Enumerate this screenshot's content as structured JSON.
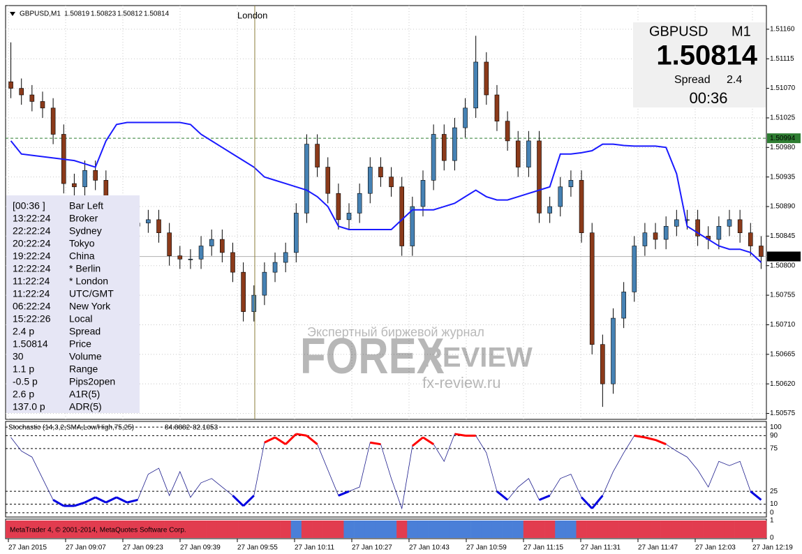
{
  "header": {
    "symbol": "GBPUSD,M1",
    "ohlc": [
      1.50819,
      1.50823,
      1.50812,
      1.50814
    ]
  },
  "session_marker": "London",
  "price_box": {
    "symbol": "GBPUSD",
    "timeframe": "M1",
    "price": 1.50814,
    "spread_label": "Spread",
    "spread": 2.4,
    "timer": "00:36"
  },
  "info_panel": [
    {
      "value": "[00:36 ]",
      "label": "Bar Left",
      "color": "#4a7fc0",
      "label_color": "#2a9a2a"
    },
    {
      "value": "13:22:24",
      "label": "Broker",
      "color": "#4a7fc0",
      "label_color": "#2a9a2a"
    },
    {
      "value": "22:22:24",
      "label": "Sydney",
      "color": "#4a7fc0",
      "label_color": "#2a9a2a"
    },
    {
      "value": "20:22:24",
      "label": "Tokyo",
      "color": "#4a7fc0",
      "label_color": "#2a9a2a"
    },
    {
      "value": "19:22:24",
      "label": "China",
      "color": "#4a7fc0",
      "label_color": "#2a9a2a"
    },
    {
      "value": "12:22:24",
      "label": "* Berlin",
      "color": "#ff4a1a",
      "label_color": "#ff4a1a"
    },
    {
      "value": "11:22:24",
      "label": "* London",
      "color": "#ff4a1a",
      "label_color": "#ff4a1a"
    },
    {
      "value": "11:22:24",
      "label": "UTC/GMT",
      "color": "#4a7fc0",
      "label_color": "#2a9a2a"
    },
    {
      "value": "06:22:24",
      "label": "New York",
      "color": "#4a7fc0",
      "label_color": "#2a9a2a"
    },
    {
      "value": "15:22:26",
      "label": "Local",
      "color": "#4a7fc0",
      "label_color": "#2a9a2a"
    },
    {
      "value": "2.4 p",
      "label": "Spread",
      "color": "#4a7fc0",
      "label_color": "#2a9a2a"
    },
    {
      "value": "1.50814",
      "label": "Price",
      "color": "#e8201a",
      "label_color": "#2a9a2a"
    },
    {
      "value": "30",
      "label": "Volume",
      "color": "#e8201a",
      "label_color": "#2a9a2a"
    },
    {
      "value": "1.1 p",
      "label": "Range",
      "color": "#e8201a",
      "label_color": "#2a9a2a"
    },
    {
      "value": "-0.5 p",
      "label": "Pips2open",
      "color": "#e8201a",
      "label_color": "#2a9a2a"
    },
    {
      "value": "2.6 p",
      "label": "A1R(5)",
      "color": "#e8201a",
      "label_color": "#2a9a2a"
    },
    {
      "value": "137.0 p",
      "label": "ADR(5)",
      "color": "#e8201a",
      "label_color": "#2a9a2a"
    }
  ],
  "watermark": {
    "top": "Экспертный биржевой журнал",
    "left": "FOREX",
    "right": "REVIEW",
    "site": "fx-review.ru"
  },
  "copyright": "MetaTrader 4, © 2001-2014, MetaQuotes Software Corp.",
  "time_axis": [
    "27 Jan 2015",
    "27 Jan 09:07",
    "27 Jan 09:23",
    "27 Jan 09:39",
    "27 Jan 09:55",
    "27 Jan 10:11",
    "27 Jan 10:27",
    "27 Jan 10:43",
    "27 Jan 10:59",
    "27 Jan 11:15",
    "27 Jan 11:31",
    "27 Jan 11:47",
    "27 Jan 12:03",
    "27 Jan 12:19"
  ],
  "chart_data": [
    {
      "type": "candlestick",
      "bull_color": "#4682b4",
      "bear_color": "#8b3a1a",
      "open": [
        1.5108,
        1.5107,
        1.5106,
        1.5105,
        1.5104,
        1.51,
        1.50925,
        1.5092,
        1.50945,
        1.5093,
        1.5087,
        1.50855,
        1.5086,
        1.50865,
        1.5087,
        1.5085,
        1.50815,
        1.5081,
        1.5081,
        1.5083,
        1.5084,
        1.5082,
        1.5079,
        1.5073,
        1.50755,
        1.5079,
        1.50805,
        1.5082,
        1.5088,
        1.50985,
        1.5095,
        1.5091,
        1.5087,
        1.5088,
        1.5091,
        1.5095,
        1.50935,
        1.5092,
        1.5083,
        1.5089,
        1.5093,
        1.51,
        1.5096,
        1.5101,
        1.5104,
        1.5111,
        1.5106,
        1.5102,
        1.5099,
        1.5095,
        1.5099,
        1.5088,
        1.5089,
        1.5092,
        1.5093,
        1.5085,
        1.5068,
        1.5062,
        1.5072,
        1.5076,
        1.5083,
        1.5085,
        1.5084,
        1.5086,
        1.5087,
        1.5087,
        1.50845,
        1.5084,
        1.5086,
        1.5087,
        1.5085,
        1.5083
      ],
      "high": [
        1.5114,
        1.51085,
        1.51075,
        1.51065,
        1.51055,
        1.51015,
        1.5094,
        1.5096,
        1.5096,
        1.50945,
        1.50885,
        1.50875,
        1.5088,
        1.50885,
        1.50885,
        1.50865,
        1.5083,
        1.50825,
        1.50845,
        1.50855,
        1.50855,
        1.50835,
        1.50805,
        1.5077,
        1.50805,
        1.5082,
        1.50835,
        1.50895,
        1.51,
        1.51,
        1.50965,
        1.50925,
        1.50895,
        1.50925,
        1.50965,
        1.50965,
        1.5095,
        1.50935,
        1.50905,
        1.50945,
        1.51015,
        1.51015,
        1.51025,
        1.51055,
        1.5115,
        1.51125,
        1.51075,
        1.51035,
        1.51005,
        1.51005,
        1.51005,
        1.50905,
        1.50935,
        1.50945,
        1.50945,
        1.50865,
        1.50695,
        1.50735,
        1.50775,
        1.50845,
        1.50865,
        1.50865,
        1.50875,
        1.50885,
        1.50885,
        1.50885,
        1.5086,
        1.50875,
        1.50885,
        1.50885,
        1.50865,
        1.50845
      ],
      "low": [
        1.51055,
        1.51045,
        1.51035,
        1.51025,
        1.50985,
        1.5091,
        1.50905,
        1.50905,
        1.50915,
        1.50855,
        1.5084,
        1.5084,
        1.50845,
        1.5085,
        1.50835,
        1.508,
        1.50795,
        1.50795,
        1.50795,
        1.50815,
        1.50805,
        1.50775,
        1.50715,
        1.50715,
        1.5074,
        1.50775,
        1.5079,
        1.50805,
        1.50865,
        1.50935,
        1.50895,
        1.50855,
        1.50855,
        1.50865,
        1.50895,
        1.5092,
        1.50905,
        1.50815,
        1.50815,
        1.50875,
        1.50915,
        1.50945,
        1.50945,
        1.50995,
        1.51025,
        1.51045,
        1.51005,
        1.50975,
        1.50935,
        1.50935,
        1.50865,
        1.50865,
        1.50875,
        1.50905,
        1.50835,
        1.50665,
        1.50585,
        1.50605,
        1.50705,
        1.50745,
        1.50815,
        1.50825,
        1.50825,
        1.50845,
        1.50855,
        1.5083,
        1.50825,
        1.50825,
        1.50845,
        1.50835,
        1.50815,
        1.50795
      ],
      "close": [
        1.5107,
        1.5106,
        1.5105,
        1.5104,
        1.51,
        1.50925,
        1.5092,
        1.50945,
        1.5093,
        1.5087,
        1.50855,
        1.5086,
        1.50865,
        1.5087,
        1.5085,
        1.50815,
        1.5081,
        1.5081,
        1.5083,
        1.5084,
        1.5082,
        1.5079,
        1.5073,
        1.50755,
        1.5079,
        1.50805,
        1.5082,
        1.5088,
        1.50985,
        1.5095,
        1.5091,
        1.5087,
        1.5088,
        1.5091,
        1.5095,
        1.50935,
        1.5092,
        1.5083,
        1.5089,
        1.5093,
        1.51,
        1.5096,
        1.5101,
        1.5104,
        1.5111,
        1.5106,
        1.5102,
        1.5099,
        1.5095,
        1.5099,
        1.5088,
        1.5089,
        1.5092,
        1.5093,
        1.5085,
        1.5068,
        1.5062,
        1.5072,
        1.5076,
        1.5083,
        1.5085,
        1.5084,
        1.5086,
        1.5087,
        1.5087,
        1.50845,
        1.5084,
        1.5086,
        1.5087,
        1.5085,
        1.5083,
        1.50814
      ],
      "overlay": {
        "color": "#1a1aff",
        "values": [
          1.5099,
          1.5097,
          1.50968,
          1.50966,
          1.50964,
          1.50962,
          1.5096,
          1.50955,
          1.5095,
          1.5099,
          1.51015,
          1.51018,
          1.51018,
          1.51018,
          1.51018,
          1.51018,
          1.51018,
          1.51015,
          1.51,
          1.5099,
          1.5098,
          1.5097,
          1.5096,
          1.5095,
          1.50935,
          1.5093,
          1.50925,
          1.5092,
          1.50915,
          1.50905,
          1.5089,
          1.5086,
          1.50855,
          1.50855,
          1.50855,
          1.50855,
          1.50855,
          1.5087,
          1.50885,
          1.50885,
          1.50885,
          1.5089,
          1.50895,
          1.50905,
          1.50915,
          1.50905,
          1.509,
          1.509,
          1.50905,
          1.5091,
          1.50915,
          1.5092,
          1.5097,
          1.5097,
          1.50972,
          1.50975,
          1.50985,
          1.50985,
          1.50983,
          1.50982,
          1.50982,
          1.50982,
          1.5098,
          1.5094,
          1.5086,
          1.5085,
          1.5084,
          1.5083,
          1.50825,
          1.50825,
          1.5082,
          1.50805
        ]
      },
      "hlines": [
        {
          "value": 1.50994,
          "color": "#2e7d32",
          "label_bg": "#2e7d32",
          "dashed": true
        },
        {
          "value": 1.50814,
          "color": "#b0b0b0",
          "label_bg": "#000000",
          "dashed": false
        }
      ],
      "ylim": [
        1.50566,
        1.51196
      ],
      "yticks": [
        {
          "value": 1.5116,
          "label": "1.51160"
        },
        1.51115,
        {
          "value": 1.5107,
          "label": "1.51070"
        },
        1.51025,
        {
          "value": 1.5098,
          "label": "1.50980"
        },
        1.50935,
        {
          "value": 1.5089,
          "label": "1.50890"
        },
        1.50845,
        {
          "value": 1.508,
          "label": "1.50800"
        },
        1.50755,
        {
          "value": 1.5071,
          "label": "1.50710"
        },
        1.50665,
        {
          "value": 1.5062,
          "label": "1.50620"
        },
        1.50575
      ],
      "grid": true
    },
    {
      "type": "stochastic",
      "title": "Stochastic (14,3,2,SMA,Low/High,75,25)",
      "last": [
        84.8882,
        82.1053
      ],
      "color": "#1c1c8c",
      "high_color": "#ff0000",
      "low_color": "#0000e0",
      "values": [
        88,
        72,
        65,
        40,
        15,
        8,
        8,
        12,
        18,
        12,
        18,
        12,
        15,
        45,
        52,
        20,
        48,
        18,
        35,
        40,
        30,
        20,
        8,
        20,
        82,
        88,
        80,
        92,
        90,
        80,
        50,
        20,
        25,
        30,
        82,
        80,
        40,
        5,
        78,
        88,
        80,
        60,
        92,
        90,
        90,
        70,
        25,
        15,
        30,
        40,
        15,
        20,
        40,
        45,
        18,
        5,
        20,
        48,
        70,
        90,
        88,
        85,
        80,
        72,
        65,
        50,
        30,
        60,
        55,
        60,
        25,
        15
      ],
      "ylim": [
        -5,
        105
      ],
      "yticks": [
        100,
        90,
        75,
        25,
        10,
        0
      ]
    },
    {
      "type": "strip",
      "colors": [
        "#4a7fd8",
        "#e23c4f"
      ],
      "values": [
        1,
        1,
        1,
        1,
        1,
        1,
        1,
        1,
        1,
        1,
        1,
        1,
        1,
        1,
        1,
        1,
        1,
        1,
        1,
        1,
        1,
        1,
        1,
        1,
        1,
        1,
        1,
        0,
        1,
        1,
        1,
        1,
        0,
        0,
        0,
        0,
        0,
        1,
        0,
        0,
        0,
        0,
        0,
        0,
        0,
        0,
        0,
        0,
        0,
        1,
        1,
        1,
        0,
        0,
        1,
        1,
        1,
        1,
        1,
        1,
        1,
        1,
        1,
        1,
        1,
        1,
        1,
        1,
        1,
        1,
        1,
        1
      ],
      "ylim": [
        0,
        1
      ],
      "yticks": [
        1,
        0
      ]
    }
  ]
}
